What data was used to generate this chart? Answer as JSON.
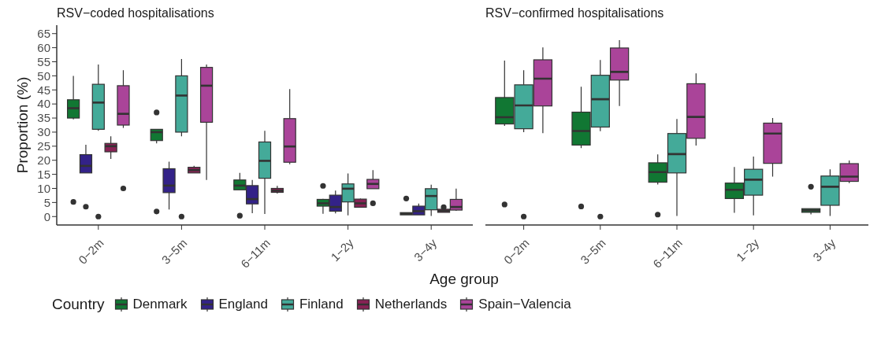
{
  "chart_data": [
    {
      "type": "box",
      "title": "RSV−coded hospitalisations",
      "ylabel": "Proportion (%)",
      "xlabel": "Age group",
      "legend_title": "Country",
      "legend": "bottom",
      "categories": [
        "0−2m",
        "3−5m",
        "6−11m",
        "1−2y",
        "3−4y"
      ],
      "ylim": [
        -3,
        68
      ],
      "yticks": [
        0,
        5,
        10,
        15,
        20,
        25,
        30,
        35,
        40,
        45,
        50,
        55,
        60,
        65
      ],
      "series": [
        {
          "name": "Denmark",
          "color": "#117733",
          "boxes": [
            {
              "low": 34.5,
              "q1": 35,
              "median": 38.5,
              "q3": 41.5,
              "high": 50,
              "outliers": [
                5.2
              ]
            },
            {
              "low": 26,
              "q1": 27,
              "median": 30,
              "q3": 31,
              "high": 31,
              "outliers": [
                37,
                1.8
              ]
            },
            {
              "low": 9.5,
              "q1": 9.5,
              "median": 11,
              "q3": 13,
              "high": 15.5,
              "outliers": [
                0.3
              ]
            },
            {
              "low": 1,
              "q1": 3.7,
              "median": 4.7,
              "q3": 6.1,
              "high": 6.3,
              "outliers": [
                10.9
              ]
            },
            {
              "low": 0.6,
              "q1": 0.6,
              "median": 1,
              "q3": 1.4,
              "high": 1.4,
              "outliers": [
                6.4
              ]
            }
          ]
        },
        {
          "name": "England",
          "color": "#332288",
          "boxes": [
            {
              "low": 15.5,
              "q1": 15.5,
              "median": 18,
              "q3": 22,
              "high": 25.5,
              "outliers": [
                3.5
              ]
            },
            {
              "low": 2.5,
              "q1": 8.5,
              "median": 11,
              "q3": 17,
              "high": 19.5
            },
            {
              "low": 1.2,
              "q1": 4.5,
              "median": 6.2,
              "q3": 11,
              "high": 13
            },
            {
              "low": 1.1,
              "q1": 1.9,
              "median": 3.4,
              "q3": 7.6,
              "high": 9.2
            },
            {
              "low": 0.6,
              "q1": 0.6,
              "median": 1.9,
              "q3": 3.7,
              "high": 4.6
            }
          ]
        },
        {
          "name": "Finland",
          "color": "#44aa99",
          "boxes": [
            {
              "low": 30.5,
              "q1": 31,
              "median": 40.5,
              "q3": 47,
              "high": 54,
              "outliers": [
                0
              ]
            },
            {
              "low": 28.5,
              "q1": 30,
              "median": 43,
              "q3": 50,
              "high": 56,
              "outliers": [
                0
              ]
            },
            {
              "low": 0.9,
              "q1": 13.6,
              "median": 19.8,
              "q3": 26.5,
              "high": 30.5
            },
            {
              "low": 0.4,
              "q1": 5.2,
              "median": 9.9,
              "q3": 11.6,
              "high": 15.3
            },
            {
              "low": 0.2,
              "q1": 2.4,
              "median": 7.3,
              "q3": 9.9,
              "high": 11.3
            }
          ]
        },
        {
          "name": "Netherlands",
          "color": "#882255",
          "boxes": [
            {
              "low": 20.5,
              "q1": 23,
              "median": 25,
              "q3": 26,
              "high": 28.5
            },
            {
              "low": 15.5,
              "q1": 15.5,
              "median": 16.5,
              "q3": 17.5,
              "high": 18
            },
            {
              "low": 8.2,
              "q1": 8.6,
              "median": 9.2,
              "q3": 10,
              "high": 10.9
            },
            {
              "low": 3.3,
              "q1": 3.3,
              "median": 4.7,
              "q3": 6.2,
              "high": 6.4
            },
            {
              "low": 1.5,
              "q1": 1.5,
              "median": 2,
              "q3": 2.6,
              "high": 2.6,
              "outliers": [
                3.3
              ]
            }
          ]
        },
        {
          "name": "Spain−Valencia",
          "color": "#aa4499",
          "boxes": [
            {
              "low": 31.5,
              "q1": 32.5,
              "median": 36.5,
              "q3": 46.5,
              "high": 52,
              "outliers": [
                10
              ]
            },
            {
              "low": 13,
              "q1": 33.5,
              "median": 46.5,
              "q3": 53,
              "high": 54
            },
            {
              "low": 18.6,
              "q1": 19.3,
              "median": 24.9,
              "q3": 34.8,
              "high": 45.3
            },
            {
              "low": 9.9,
              "q1": 9.9,
              "median": 11.6,
              "q3": 13.2,
              "high": 16.5,
              "outliers": [
                4.7
              ]
            },
            {
              "low": 2,
              "q1": 2.3,
              "median": 3.4,
              "q3": 6.1,
              "high": 9.9
            }
          ]
        }
      ]
    },
    {
      "type": "box",
      "title": "RSV−confirmed hospitalisations",
      "categories": [
        "0−2m",
        "3−5m",
        "6−11m",
        "1−2y",
        "3−4y"
      ],
      "ylim": [
        -3,
        65
      ],
      "yticks": [
        0,
        5,
        10,
        15,
        20,
        25,
        30,
        35,
        40,
        45,
        50,
        55,
        60,
        65
      ],
      "tick_labels": "x",
      "series": [
        {
          "name": "Denmark",
          "color": "#117733",
          "boxes": [
            {
              "low": 32.2,
              "q1": 32.9,
              "median": 35.3,
              "q3": 42.3,
              "high": 55.4,
              "outliers": [
                4.3
              ]
            },
            {
              "low": 24.3,
              "q1": 25.4,
              "median": 30.4,
              "q3": 37.1,
              "high": 46.1,
              "outliers": [
                3.6
              ]
            },
            {
              "low": 11.4,
              "q1": 12.2,
              "median": 15.8,
              "q3": 19.1,
              "high": 22.1,
              "outliers": [
                0.7
              ]
            },
            {
              "low": 1.3,
              "q1": 6.4,
              "median": 9.5,
              "q3": 11.9,
              "high": 17.6
            },
            {
              "low": 0.8,
              "q1": 1.5,
              "median": 2.2,
              "q3": 2.8,
              "high": 2.8,
              "outliers": [
                10.6
              ]
            }
          ]
        },
        {
          "name": "Finland",
          "color": "#44aa99",
          "boxes": [
            {
              "low": 30,
              "q1": 31.2,
              "median": 39.5,
              "q3": 46.8,
              "high": 52,
              "outliers": [
                0
              ]
            },
            {
              "low": 30.3,
              "q1": 31.8,
              "median": 41.7,
              "q3": 50.2,
              "high": 55.6,
              "outliers": [
                0
              ]
            },
            {
              "low": 0.2,
              "q1": 15.5,
              "median": 22.2,
              "q3": 29.5,
              "high": 34.7
            },
            {
              "low": 0.4,
              "q1": 7.6,
              "median": 13.1,
              "q3": 16.8,
              "high": 21.3
            },
            {
              "low": 0.2,
              "q1": 4,
              "median": 10.6,
              "q3": 14.4,
              "high": 16.8
            }
          ]
        },
        {
          "name": "Spain−Valencia",
          "color": "#aa4499",
          "boxes": [
            {
              "low": 29.6,
              "q1": 39.3,
              "median": 49,
              "q3": 55.7,
              "high": 60.1
            },
            {
              "low": 39.3,
              "q1": 48.5,
              "median": 51.4,
              "q3": 59.9,
              "high": 62.7
            },
            {
              "low": 25.2,
              "q1": 27.8,
              "median": 35.4,
              "q3": 47.2,
              "high": 50.9
            },
            {
              "low": 14.2,
              "q1": 18.9,
              "median": 29.5,
              "q3": 33.2,
              "high": 35
            },
            {
              "low": 11.9,
              "q1": 12.5,
              "median": 14.2,
              "q3": 18.8,
              "high": 19.9
            }
          ]
        }
      ]
    }
  ]
}
